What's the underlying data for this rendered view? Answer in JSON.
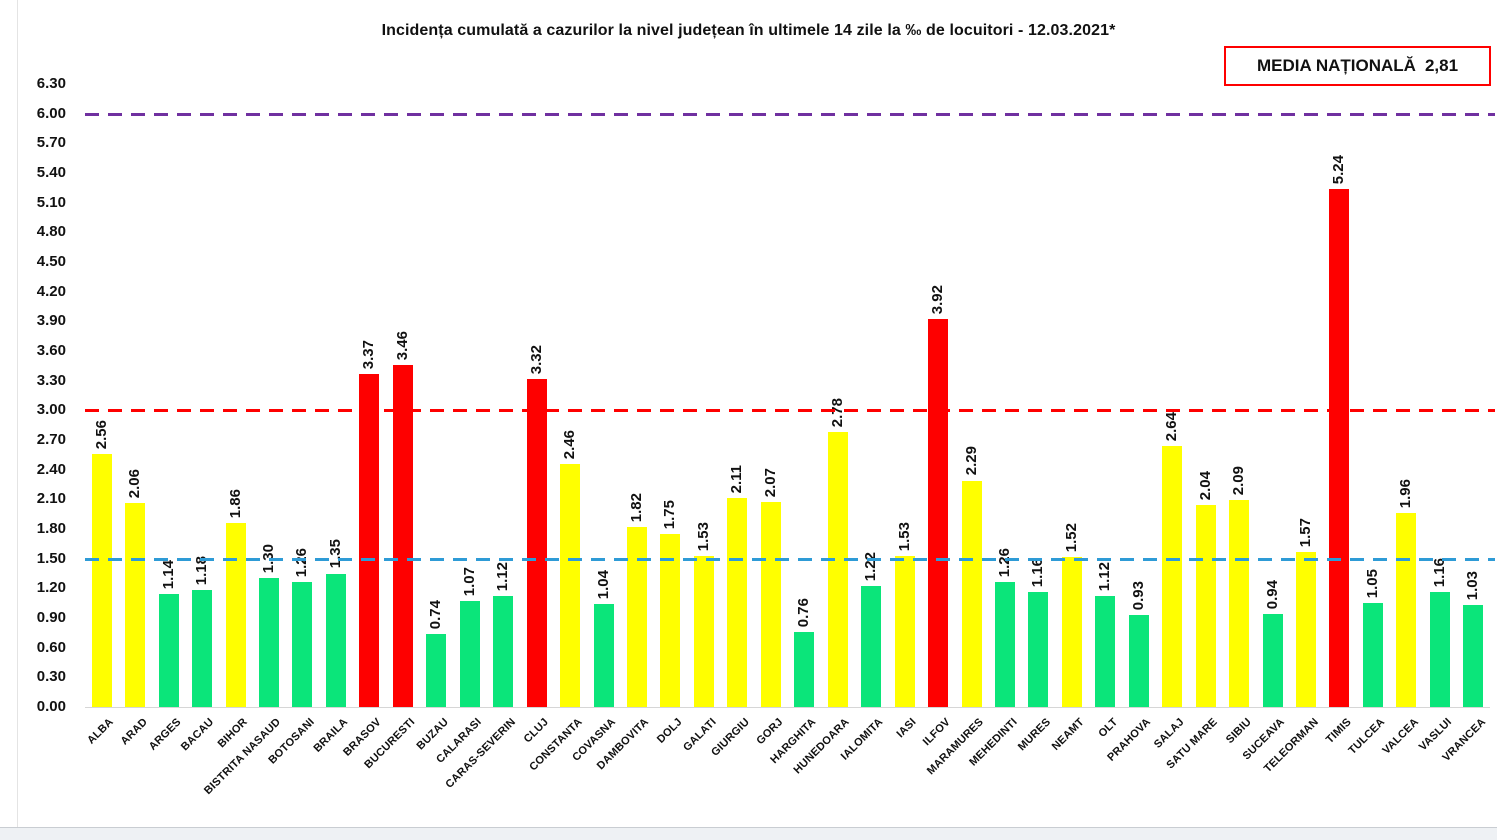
{
  "title": "Incidența cumulată a cazurilor la nivel județean în ultimele 14 zile la ‰ de locuitori - 12.03.2021*",
  "national_average": {
    "label": "MEDIA NAȚIONALĂ",
    "value": "2,81"
  },
  "colors": {
    "palette": {
      "red": "#fe0000",
      "yellow": "#ffff00",
      "green": "#0be57a"
    },
    "threshold_purple": "#7030a0",
    "threshold_red": "#fe0000",
    "threshold_blue": "#2e9bd6",
    "box_border": "#fe0000"
  },
  "chart_data": {
    "type": "bar",
    "title": "Incidența cumulată a cazurilor la nivel județean în ultimele 14 zile la ‰ de locuitori - 12.03.2021*",
    "xlabel": "",
    "ylabel": "",
    "ylim": [
      0,
      6.3
    ],
    "ytick_step": 0.3,
    "grid": false,
    "legend": null,
    "yticks": [
      "0.00",
      "0.30",
      "0.60",
      "0.90",
      "1.20",
      "1.50",
      "1.80",
      "2.10",
      "2.40",
      "2.70",
      "3.00",
      "3.30",
      "3.60",
      "3.90",
      "4.20",
      "4.50",
      "4.80",
      "5.10",
      "5.40",
      "5.70",
      "6.00",
      "6.30"
    ],
    "categories": [
      "ALBA",
      "ARAD",
      "ARGES",
      "BACAU",
      "BIHOR",
      "BISTRITA NASAUD",
      "BOTOSANI",
      "BRAILA",
      "BRASOV",
      "BUCURESTI",
      "BUZAU",
      "CALARASI",
      "CARAS-SEVERIN",
      "CLUJ",
      "CONSTANTA",
      "COVASNA",
      "DAMBOVITA",
      "DOLJ",
      "GALATI",
      "GIURGIU",
      "GORJ",
      "HARGHITA",
      "HUNEDOARA",
      "IALOMITA",
      "IASI",
      "ILFOV",
      "MARAMURES",
      "MEHEDINTI",
      "MURES",
      "NEAMT",
      "OLT",
      "PRAHOVA",
      "SALAJ",
      "SATU MARE",
      "SIBIU",
      "SUCEAVA",
      "TELEORMAN",
      "TIMIS",
      "TULCEA",
      "VALCEA",
      "VASLUI",
      "VRANCEA"
    ],
    "values": [
      2.56,
      2.06,
      1.14,
      1.18,
      1.86,
      1.3,
      1.26,
      1.35,
      3.37,
      3.46,
      0.74,
      1.07,
      1.12,
      3.32,
      2.46,
      1.04,
      1.82,
      1.75,
      1.53,
      2.11,
      2.07,
      0.76,
      2.78,
      1.22,
      1.53,
      3.92,
      2.29,
      1.26,
      1.16,
      1.52,
      1.12,
      0.93,
      2.64,
      2.04,
      2.09,
      0.94,
      1.57,
      5.24,
      1.05,
      1.96,
      1.16,
      1.03
    ],
    "bar_colors": [
      "yellow",
      "yellow",
      "green",
      "green",
      "yellow",
      "green",
      "green",
      "green",
      "red",
      "red",
      "green",
      "green",
      "green",
      "red",
      "yellow",
      "green",
      "yellow",
      "yellow",
      "yellow",
      "yellow",
      "yellow",
      "green",
      "yellow",
      "green",
      "yellow",
      "red",
      "yellow",
      "green",
      "green",
      "yellow",
      "green",
      "green",
      "yellow",
      "yellow",
      "yellow",
      "green",
      "yellow",
      "red",
      "green",
      "yellow",
      "green",
      "green"
    ],
    "thresholds": [
      {
        "label": "6.00",
        "value": 6.0,
        "color": "#7030a0"
      },
      {
        "label": "3.00",
        "value": 3.0,
        "color": "#fe0000"
      },
      {
        "label": "1.50",
        "value": 1.5,
        "color": "#2e9bd6"
      }
    ]
  }
}
